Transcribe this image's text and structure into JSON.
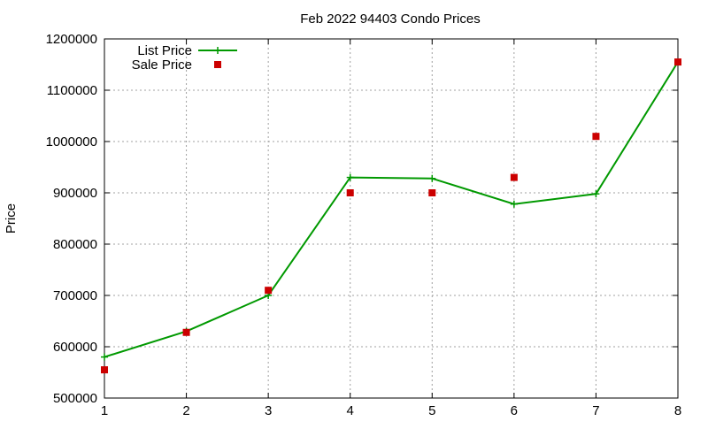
{
  "chart_data": {
    "type": "line",
    "title": "Feb 2022 94403 Condo Prices",
    "xlabel": "",
    "ylabel": "Price",
    "xlim": [
      1,
      8
    ],
    "ylim": [
      500000,
      1200000
    ],
    "x_ticks": [
      1,
      2,
      3,
      4,
      5,
      6,
      7,
      8
    ],
    "y_ticks": [
      500000,
      600000,
      700000,
      800000,
      900000,
      1000000,
      1100000,
      1200000
    ],
    "grid": true,
    "legend_position": "top-left",
    "series": [
      {
        "name": "List Price",
        "style": "line-with-plus-markers",
        "color": "#009900",
        "x": [
          1,
          2,
          3,
          4,
          5,
          6,
          7,
          8
        ],
        "y": [
          580000,
          630000,
          700000,
          930000,
          928000,
          878000,
          898000,
          1155000
        ]
      },
      {
        "name": "Sale Price",
        "style": "square-markers",
        "color": "#cc0000",
        "x": [
          1,
          2,
          3,
          4,
          5,
          6,
          7,
          8
        ],
        "y": [
          555000,
          628000,
          710000,
          900000,
          900000,
          930000,
          1010000,
          1155000
        ]
      }
    ]
  }
}
